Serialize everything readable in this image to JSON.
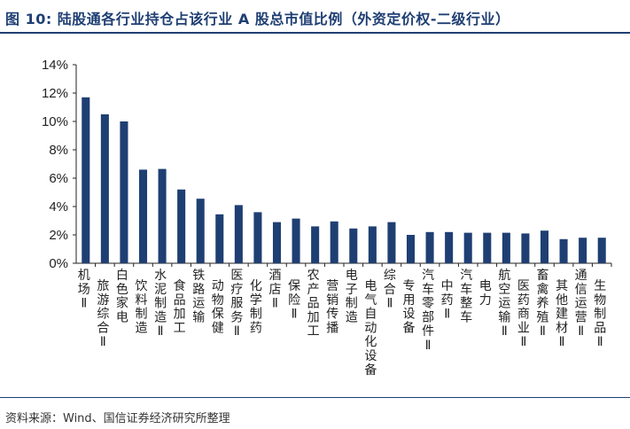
{
  "header": {
    "title": "图 10:  陆股通各行业持仓占该行业 A 股总市值比例（外资定价权-二级行业）"
  },
  "footer": {
    "source": "资料来源：Wind、国信证券经济研究所整理"
  },
  "chart_data": {
    "type": "bar",
    "title": "",
    "xlabel": "",
    "ylabel": "",
    "ylim": [
      0,
      14
    ],
    "yticks": [
      "0%",
      "2%",
      "4%",
      "6%",
      "8%",
      "10%",
      "12%",
      "14%"
    ],
    "grid": false,
    "bar_color": "#1f3f73",
    "categories": [
      "机场Ⅱ",
      "旅游综合Ⅱ",
      "白色家电",
      "饮料制造",
      "水泥制造Ⅱ",
      "食品加工",
      "铁路运输",
      "动物保健",
      "医疗服务Ⅱ",
      "化学制药",
      "酒店Ⅱ",
      "保险Ⅱ",
      "农产品加工",
      "营销传播",
      "电子制造",
      "电气自动化设备",
      "综合Ⅱ",
      "专用设备",
      "汽车零部件Ⅱ",
      "中药Ⅱ",
      "汽车整车",
      "电力",
      "航空运输Ⅱ",
      "医药商业Ⅱ",
      "畜禽养殖Ⅱ",
      "其他建材Ⅱ",
      "通信运营Ⅱ",
      "生物制品Ⅱ"
    ],
    "values": [
      11.7,
      10.5,
      10.0,
      6.6,
      6.65,
      5.2,
      4.55,
      3.45,
      4.1,
      3.6,
      2.9,
      3.15,
      2.6,
      2.95,
      2.45,
      2.6,
      2.9,
      2.0,
      2.2,
      2.2,
      2.15,
      2.15,
      2.15,
      2.1,
      2.3,
      1.7,
      1.8,
      1.8
    ]
  }
}
